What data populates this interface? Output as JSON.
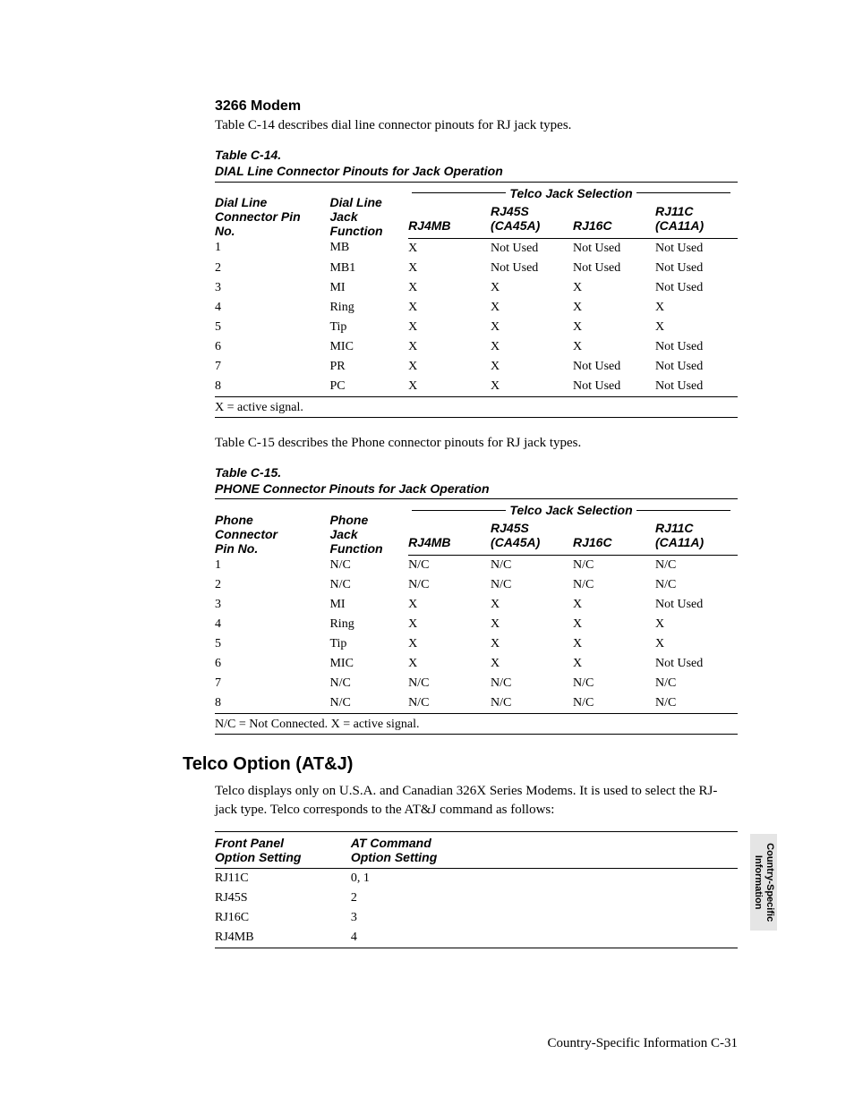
{
  "section1": {
    "heading": "3266 Modem",
    "intro": "Table C-14 describes dial line connector pinouts for RJ jack types."
  },
  "table14": {
    "caption_line1": "Table C-14.",
    "caption_line2": "DIAL Line Connector Pinouts for Jack Operation",
    "spanner": "Telco Jack Selection",
    "headers": {
      "pin_l1": "Dial Line",
      "pin_l2": "Connector Pin",
      "pin_l3": "No.",
      "func_l1": "Dial Line",
      "func_l2": "Jack",
      "func_l3": "Function",
      "c1": "RJ4MB",
      "c2_l1": "RJ45S",
      "c2_l2": "(CA45A)",
      "c3": "RJ16C",
      "c4_l1": "RJ11C",
      "c4_l2": "(CA11A)"
    },
    "rows": [
      {
        "pin": "1",
        "func": "MB",
        "c1": "X",
        "c2": "Not Used",
        "c3": "Not Used",
        "c4": "Not Used"
      },
      {
        "pin": "2",
        "func": "MB1",
        "c1": "X",
        "c2": "Not Used",
        "c3": "Not Used",
        "c4": "Not Used"
      },
      {
        "pin": "3",
        "func": "MI",
        "c1": "X",
        "c2": "X",
        "c3": "X",
        "c4": "Not Used"
      },
      {
        "pin": "4",
        "func": "Ring",
        "c1": "X",
        "c2": "X",
        "c3": "X",
        "c4": "X"
      },
      {
        "pin": "5",
        "func": "Tip",
        "c1": "X",
        "c2": "X",
        "c3": "X",
        "c4": "X"
      },
      {
        "pin": "6",
        "func": "MIC",
        "c1": "X",
        "c2": "X",
        "c3": "X",
        "c4": "Not Used"
      },
      {
        "pin": "7",
        "func": "PR",
        "c1": "X",
        "c2": "X",
        "c3": "Not Used",
        "c4": "Not Used"
      },
      {
        "pin": "8",
        "func": "PC",
        "c1": "X",
        "c2": "X",
        "c3": "Not Used",
        "c4": "Not Used"
      }
    ],
    "footnote": " X = active signal."
  },
  "intro15": "Table C-15 describes the Phone connector pinouts for RJ jack types.",
  "table15": {
    "caption_line1": "Table C-15.",
    "caption_line2": "PHONE Connector Pinouts for Jack Operation",
    "spanner": "Telco Jack Selection",
    "headers": {
      "pin_l1": "Phone",
      "pin_l2": "Connector",
      "pin_l3": "Pin No.",
      "func_l1": "Phone",
      "func_l2": "Jack",
      "func_l3": "Function",
      "c1": "RJ4MB",
      "c2_l1": "RJ45S",
      "c2_l2": "(CA45A)",
      "c3": "RJ16C",
      "c4_l1": "RJ11C",
      "c4_l2": "(CA11A)"
    },
    "rows": [
      {
        "pin": "1",
        "func": "N/C",
        "c1": "N/C",
        "c2": "N/C",
        "c3": "N/C",
        "c4": "N/C"
      },
      {
        "pin": "2",
        "func": "N/C",
        "c1": "N/C",
        "c2": "N/C",
        "c3": "N/C",
        "c4": "N/C"
      },
      {
        "pin": "3",
        "func": "MI",
        "c1": "X",
        "c2": "X",
        "c3": "X",
        "c4": "Not Used"
      },
      {
        "pin": "4",
        "func": "Ring",
        "c1": "X",
        "c2": "X",
        "c3": "X",
        "c4": "X"
      },
      {
        "pin": "5",
        "func": "Tip",
        "c1": "X",
        "c2": "X",
        "c3": "X",
        "c4": "X"
      },
      {
        "pin": "6",
        "func": "MIC",
        "c1": "X",
        "c2": "X",
        "c3": "X",
        "c4": "Not Used"
      },
      {
        "pin": "7",
        "func": "N/C",
        "c1": "N/C",
        "c2": "N/C",
        "c3": "N/C",
        "c4": "N/C"
      },
      {
        "pin": "8",
        "func": "N/C",
        "c1": "N/C",
        "c2": "N/C",
        "c3": "N/C",
        "c4": "N/C"
      }
    ],
    "footnote": " N/C = Not Connected. X = active signal."
  },
  "section2": {
    "heading": "Telco Option (AT&J)",
    "para": "Telco displays only on U.S.A. and Canadian 326X Series Modems. It is used to select the RJ-jack type. Telco corresponds to the AT&J command as follows:"
  },
  "optTable": {
    "h1_l1": "Front Panel",
    "h1_l2": "Option Setting",
    "h2_l1": "AT Command",
    "h2_l2": "Option Setting",
    "rows": [
      {
        "a": "RJ11C",
        "b": "0, 1"
      },
      {
        "a": "RJ45S",
        "b": "2"
      },
      {
        "a": "RJ16C",
        "b": "3"
      },
      {
        "a": "RJ4MB",
        "b": "4"
      }
    ]
  },
  "sideTab": {
    "line1": "Country-Specific",
    "line2": "Information"
  },
  "footer": "Country-Specific Information  C-31"
}
